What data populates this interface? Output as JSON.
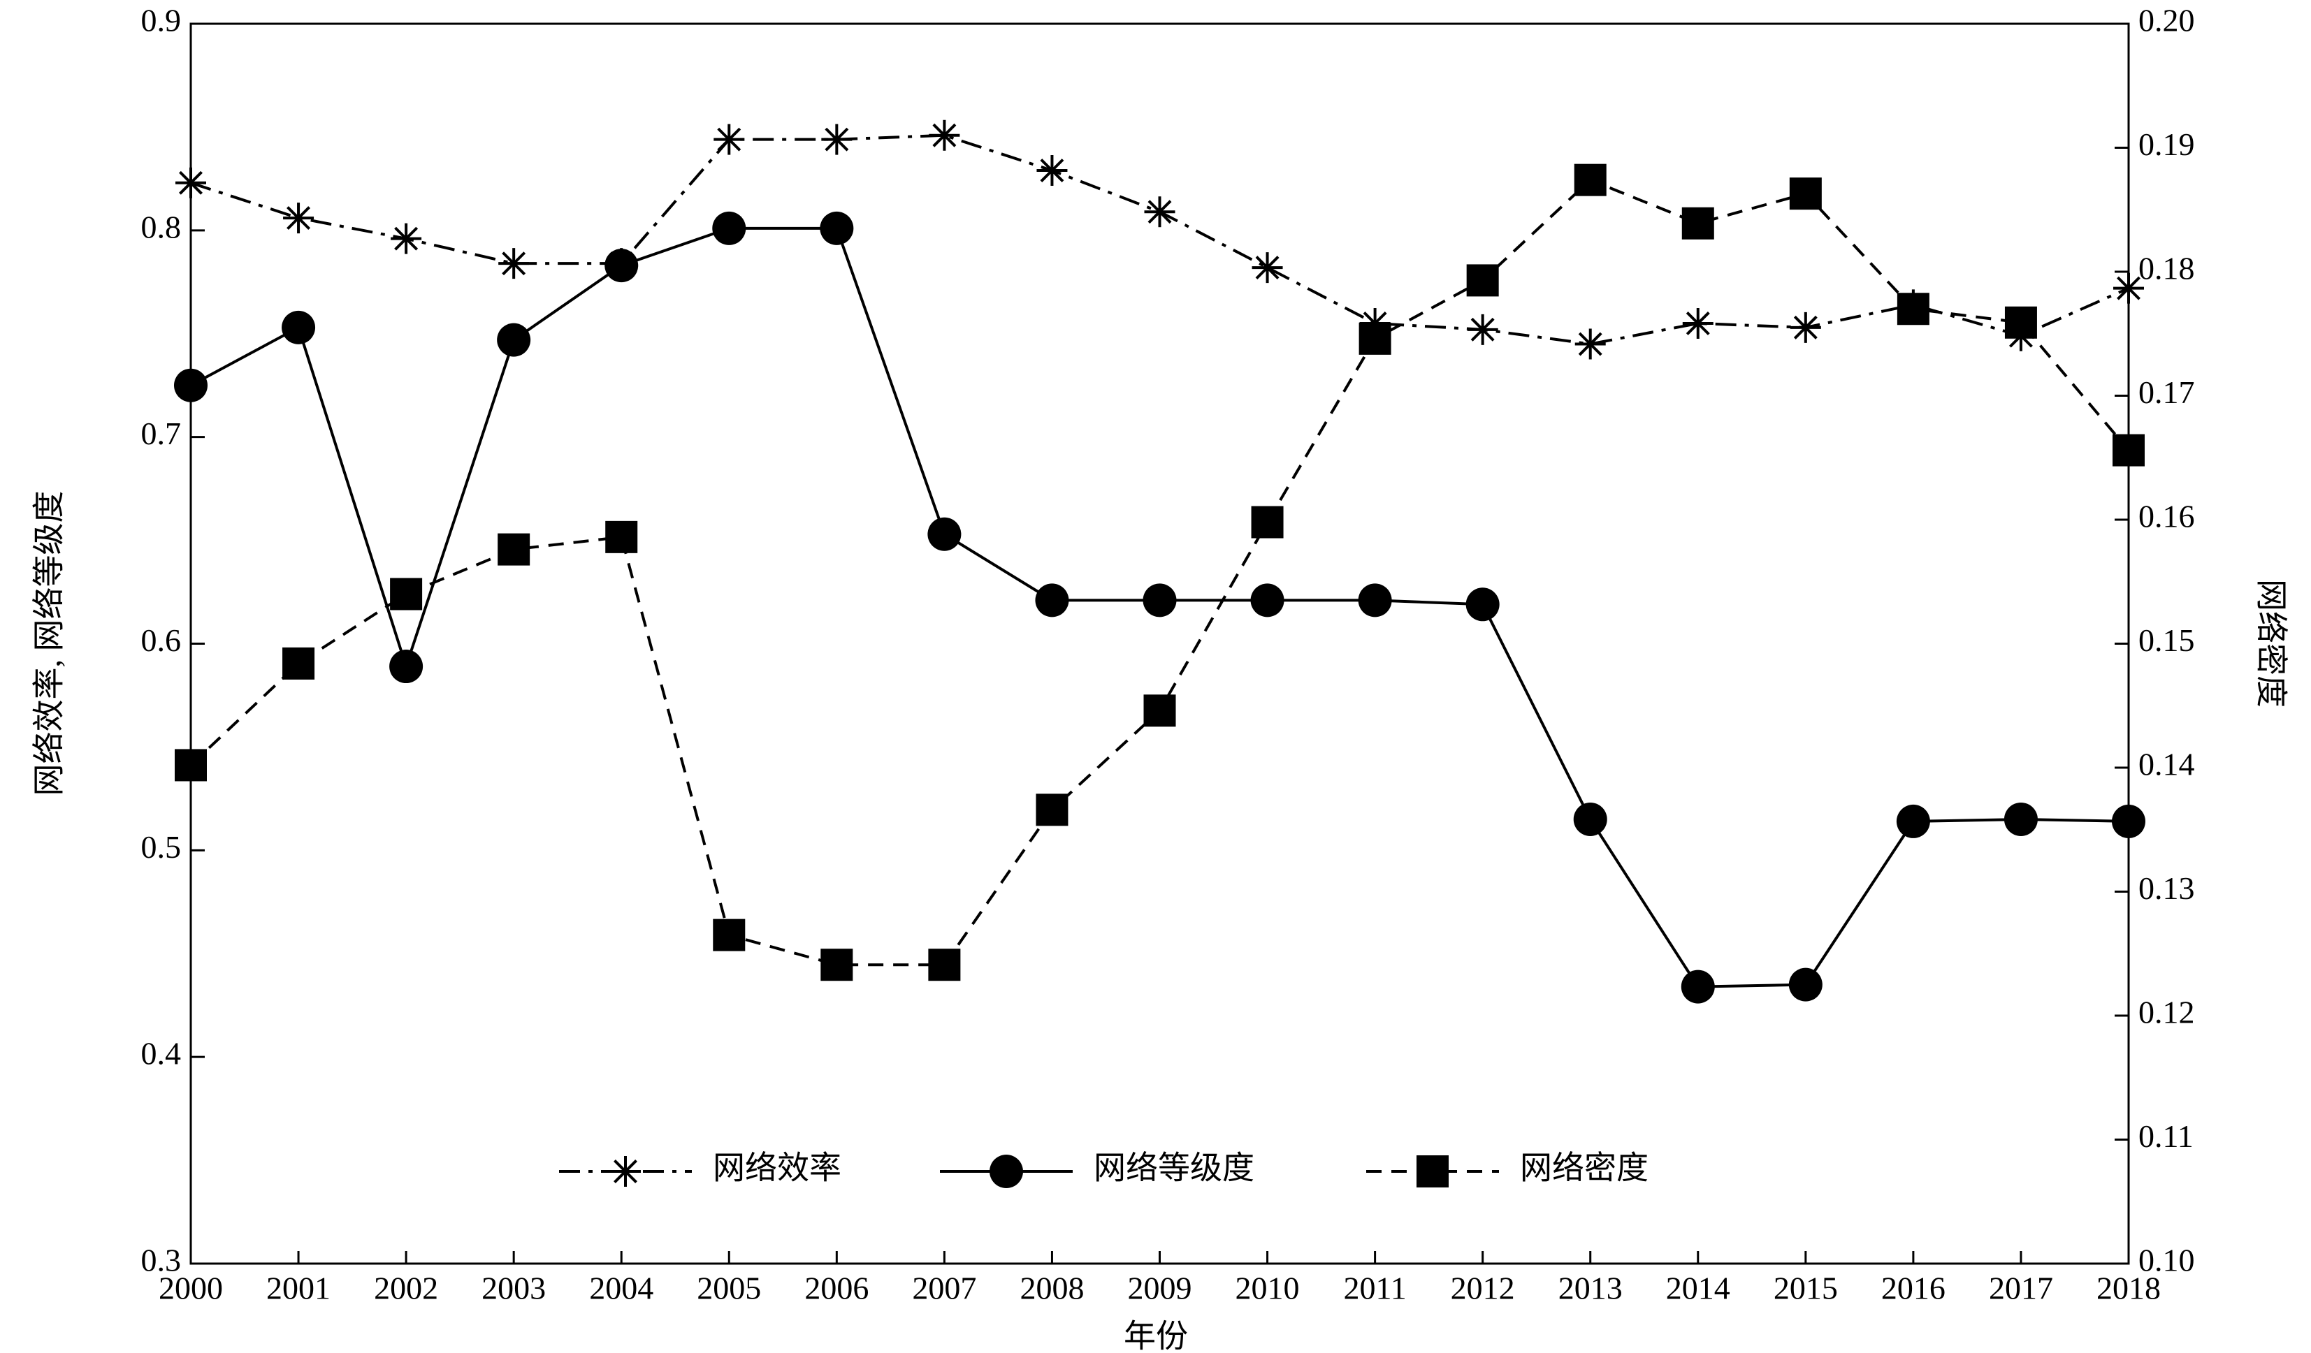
{
  "chart_data": {
    "type": "line",
    "x_label": "年份",
    "y_label": "网络效率, 网络等级度",
    "y2_label": "网络密度",
    "x": [
      2000,
      2001,
      2002,
      2003,
      2004,
      2005,
      2006,
      2007,
      2008,
      2009,
      2010,
      2011,
      2012,
      2013,
      2014,
      2015,
      2016,
      2017,
      2018
    ],
    "xlim": [
      2000,
      2018
    ],
    "xticks": [
      2000,
      2001,
      2002,
      2003,
      2004,
      2005,
      2006,
      2007,
      2008,
      2009,
      2010,
      2011,
      2012,
      2013,
      2014,
      2015,
      2016,
      2017,
      2018
    ],
    "ylim": [
      0.3,
      0.9
    ],
    "yticks": [
      0.3,
      0.4,
      0.5,
      0.6,
      0.7,
      0.8,
      0.9
    ],
    "y2lim": [
      0.1,
      0.2
    ],
    "y2ticks": [
      {
        "value": 0.1,
        "label": "0.10"
      },
      {
        "value": 0.11,
        "label": "0.11"
      },
      {
        "value": 0.12,
        "label": "0.12"
      },
      {
        "value": 0.13,
        "label": "0.13"
      },
      {
        "value": 0.14,
        "label": "0.14"
      },
      {
        "value": 0.15,
        "label": "0.15"
      },
      {
        "value": 0.16,
        "label": "0.16"
      },
      {
        "value": 0.17,
        "label": "0.17"
      },
      {
        "value": 0.18,
        "label": "0.18"
      },
      {
        "value": 0.19,
        "label": "0.19"
      },
      {
        "value": 0.2,
        "label": "0.20"
      }
    ],
    "legend": "lower center",
    "series": [
      {
        "name": "网络效率",
        "color": "#000000",
        "marker": "asterisk",
        "linestyle": "dashdot",
        "values": [
          0.823,
          0.806,
          0.796,
          0.784,
          0.784,
          0.844,
          0.844,
          0.846,
          0.829,
          0.809,
          0.782,
          0.755,
          0.752,
          0.745,
          0.755,
          0.753,
          0.764,
          0.749,
          0.772
        ]
      },
      {
        "name": "网络等级度",
        "color": "#000000",
        "marker": "circle",
        "linestyle": "solid",
        "values": [
          0.725,
          0.753,
          0.589,
          0.747,
          0.783,
          0.801,
          0.801,
          0.653,
          0.621,
          0.621,
          0.621,
          0.621,
          0.619,
          0.515,
          0.434,
          0.435,
          0.514,
          0.515,
          0.514
        ]
      },
      {
        "name": "网络密度",
        "color": "#000000",
        "marker": "square",
        "linestyle": "dashed",
        "axis": "y2",
        "values": [
          0.1402,
          0.1484,
          0.154,
          0.1576,
          0.1586,
          0.1265,
          0.1241,
          0.1241,
          0.1366,
          0.1446,
          0.1598,
          0.1746,
          0.1793,
          0.1874,
          0.1839,
          0.1863,
          0.177,
          0.1759,
          0.1656
        ]
      }
    ]
  }
}
